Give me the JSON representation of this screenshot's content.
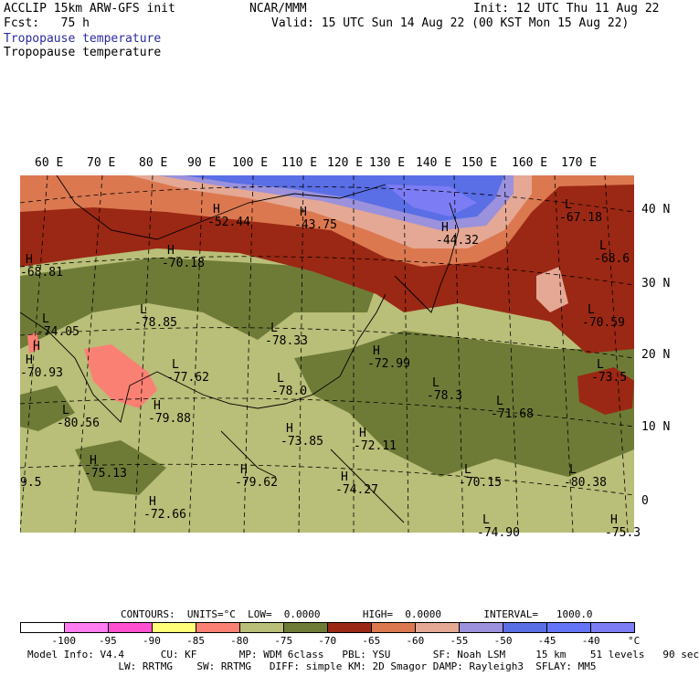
{
  "header": {
    "left1": "ACCLIP 15km ARW-GFS init",
    "center1": "NCAR/MMM",
    "right1": "Init: 12 UTC Thu 11 Aug 22",
    "left2": "Fcst:   75 h",
    "right2": "Valid: 15 UTC Sun 14 Aug 22 (00 KST Mon 15 Aug 22)",
    "field1": "Tropopause temperature",
    "field2": "Tropopause temperature"
  },
  "map": {
    "lon_labels": [
      "60 E",
      "70 E",
      "80 E",
      "90 E",
      "100 E",
      "110 E",
      "120 E",
      "130 E",
      "140 E",
      "150 E",
      "160 E",
      "170 E"
    ],
    "lat_labels": [
      "40 N",
      "30 N",
      "20 N",
      "10 N",
      "0"
    ],
    "labels": [
      {
        "t": "H",
        "v": "-52.44"
      },
      {
        "t": "H",
        "v": "-43.75"
      },
      {
        "t": "H",
        "v": "-44.32"
      },
      {
        "t": "L",
        "v": "-67.18"
      },
      {
        "t": "L",
        "v": "-68.6"
      },
      {
        "t": "H",
        "v": "-68.81"
      },
      {
        "t": "H",
        "v": "-70.18"
      },
      {
        "t": "L",
        "v": "-74.05"
      },
      {
        "t": "L",
        "v": "-78.85"
      },
      {
        "t": "L",
        "v": "-78.33"
      },
      {
        "t": "H",
        "v": "-70.93"
      },
      {
        "t": "L",
        "v": "-77.62"
      },
      {
        "t": "L",
        "v": "-78.0"
      },
      {
        "t": "H",
        "v": "-72.99"
      },
      {
        "t": "L",
        "v": "-78.3"
      },
      {
        "t": "L",
        "v": "-70.59"
      },
      {
        "t": "L",
        "v": "-73.5"
      },
      {
        "t": "L",
        "v": "-80.56"
      },
      {
        "t": "H",
        "v": "-79.88"
      },
      {
        "t": "L",
        "v": "-71.68"
      },
      {
        "t": "H",
        "v": "-73.85"
      },
      {
        "t": "H",
        "v": "-72.11"
      },
      {
        "t": "H",
        "v": "-75.13"
      },
      {
        "t": "H",
        "v": "-79.62"
      },
      {
        "t": "L",
        "v": "-70.15"
      },
      {
        "t": "L",
        "v": "-80.38"
      },
      {
        "t": "H",
        "v": "-72.66"
      },
      {
        "t": "L",
        "v": "-74.90"
      },
      {
        "t": "H",
        "v": "-74.27"
      },
      {
        "t": "H",
        "v": "-75.3"
      },
      {
        "t": "",
        "v": "9.5"
      },
      {
        "t": "H",
        "v": ""
      }
    ]
  },
  "legend": {
    "contours_line": "CONTOURS:  UNITS=°C  LOW=  0.0000       HIGH=  0.0000       INTERVAL=   1000.0",
    "colors": [
      "#ffffff",
      "#ff7df0",
      "#ff50d2",
      "#ffff78",
      "#fa8074",
      "#b9be78",
      "#6e7b37",
      "#9b2814",
      "#dc7850",
      "#e4a894",
      "#9b91dc",
      "#5a6ee6",
      "#6474f6",
      "#7c7cf5"
    ],
    "tick_labels": [
      "-100",
      "-95",
      "-90",
      "-85",
      "-80",
      "-75",
      "-70",
      "-65",
      "-60",
      "-55",
      "-50",
      "-45",
      "-40",
      "°C"
    ],
    "model_info1": "Model Info: V4.4      CU: KF       MP: WDM 6class   PBL: YSU       SF: Noah LSM     15 km    51 levels   90 sec",
    "model_info2": "               LW: RRTMG    SW: RRTMG   DIFF: simple KM: 2D Smagor DAMP: Rayleigh3  SFLAY: MM5"
  }
}
